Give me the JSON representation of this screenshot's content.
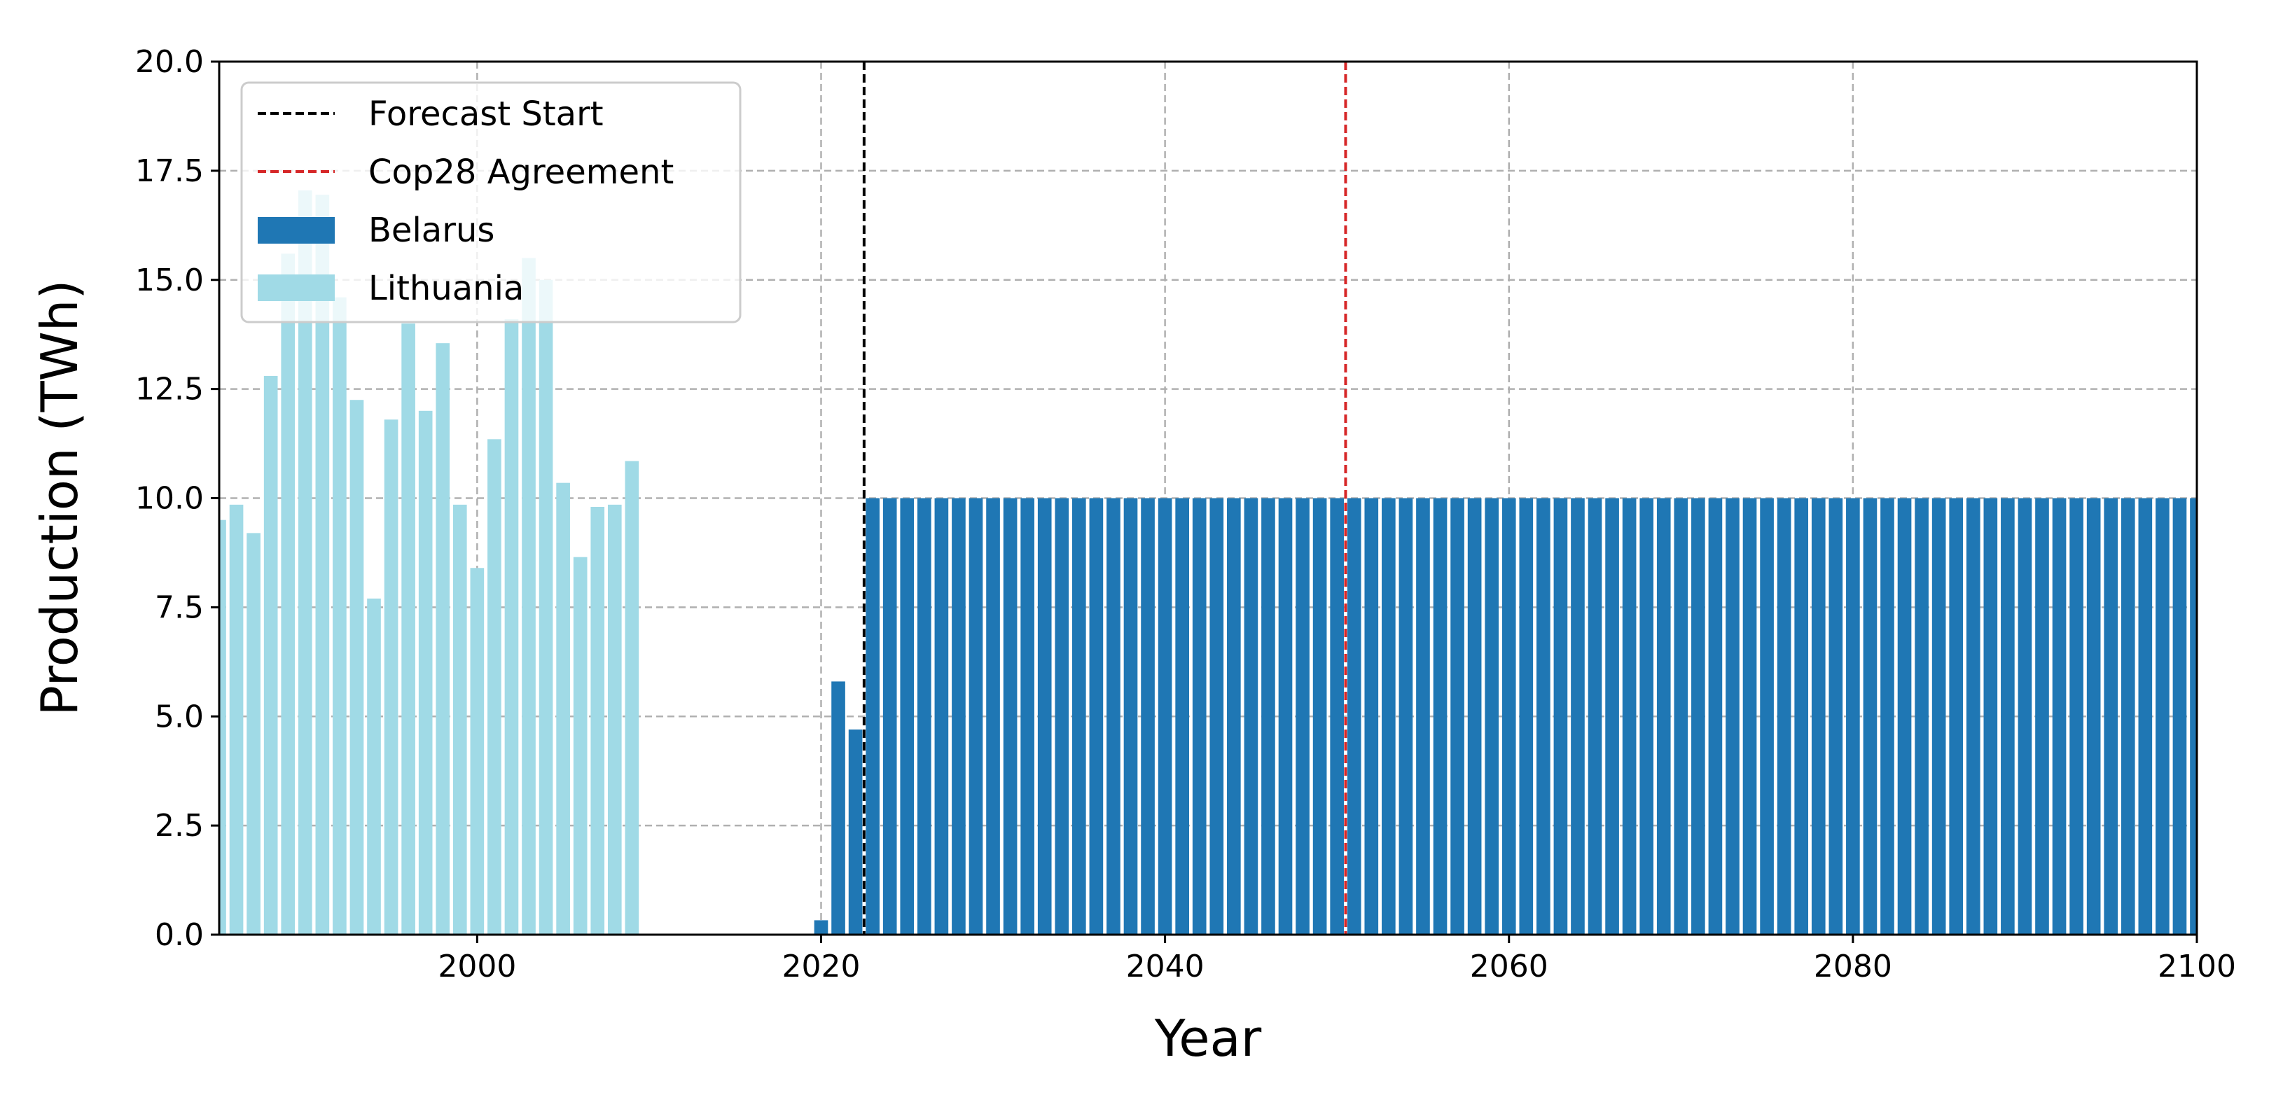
{
  "chart_data": {
    "type": "bar",
    "xlabel": "Year",
    "ylabel": "Production (TWh)",
    "xlim": [
      1985,
      2100
    ],
    "ylim": [
      0,
      20
    ],
    "x_ticks": [
      2000,
      2020,
      2040,
      2060,
      2080,
      2100
    ],
    "y_ticks": [
      "0.0",
      "2.5",
      "5.0",
      "7.5",
      "10.0",
      "12.5",
      "15.0",
      "17.5",
      "20.0"
    ],
    "grid": true,
    "legend_position": "top-left",
    "series": [
      {
        "name": "Belarus",
        "color": "#1f77b4",
        "points": [
          [
            2020,
            0.33
          ],
          [
            2021,
            5.8
          ],
          [
            2022,
            4.7
          ],
          [
            2023,
            10.0
          ],
          [
            2024,
            10.0
          ],
          [
            2025,
            10.0
          ],
          [
            2026,
            10.0
          ],
          [
            2027,
            10.0
          ],
          [
            2028,
            10.0
          ],
          [
            2029,
            10.0
          ],
          [
            2030,
            10.0
          ],
          [
            2031,
            10.0
          ],
          [
            2032,
            10.0
          ],
          [
            2033,
            10.0
          ],
          [
            2034,
            10.0
          ],
          [
            2035,
            10.0
          ],
          [
            2036,
            10.0
          ],
          [
            2037,
            10.0
          ],
          [
            2038,
            10.0
          ],
          [
            2039,
            10.0
          ],
          [
            2040,
            10.0
          ],
          [
            2041,
            10.0
          ],
          [
            2042,
            10.0
          ],
          [
            2043,
            10.0
          ],
          [
            2044,
            10.0
          ],
          [
            2045,
            10.0
          ],
          [
            2046,
            10.0
          ],
          [
            2047,
            10.0
          ],
          [
            2048,
            10.0
          ],
          [
            2049,
            10.0
          ],
          [
            2050,
            10.0
          ],
          [
            2051,
            10.0
          ],
          [
            2052,
            10.0
          ],
          [
            2053,
            10.0
          ],
          [
            2054,
            10.0
          ],
          [
            2055,
            10.0
          ],
          [
            2056,
            10.0
          ],
          [
            2057,
            10.0
          ],
          [
            2058,
            10.0
          ],
          [
            2059,
            10.0
          ],
          [
            2060,
            10.0
          ],
          [
            2061,
            10.0
          ],
          [
            2062,
            10.0
          ],
          [
            2063,
            10.0
          ],
          [
            2064,
            10.0
          ],
          [
            2065,
            10.0
          ],
          [
            2066,
            10.0
          ],
          [
            2067,
            10.0
          ],
          [
            2068,
            10.0
          ],
          [
            2069,
            10.0
          ],
          [
            2070,
            10.0
          ],
          [
            2071,
            10.0
          ],
          [
            2072,
            10.0
          ],
          [
            2073,
            10.0
          ],
          [
            2074,
            10.0
          ],
          [
            2075,
            10.0
          ],
          [
            2076,
            10.0
          ],
          [
            2077,
            10.0
          ],
          [
            2078,
            10.0
          ],
          [
            2079,
            10.0
          ],
          [
            2080,
            10.0
          ],
          [
            2081,
            10.0
          ],
          [
            2082,
            10.0
          ],
          [
            2083,
            10.0
          ],
          [
            2084,
            10.0
          ],
          [
            2085,
            10.0
          ],
          [
            2086,
            10.0
          ],
          [
            2087,
            10.0
          ],
          [
            2088,
            10.0
          ],
          [
            2089,
            10.0
          ],
          [
            2090,
            10.0
          ],
          [
            2091,
            10.0
          ],
          [
            2092,
            10.0
          ],
          [
            2093,
            10.0
          ],
          [
            2094,
            10.0
          ],
          [
            2095,
            10.0
          ],
          [
            2096,
            10.0
          ],
          [
            2097,
            10.0
          ],
          [
            2098,
            10.0
          ],
          [
            2099,
            10.0
          ],
          [
            2100,
            10.0
          ]
        ]
      },
      {
        "name": "Lithuania",
        "color": "#a0dae6",
        "points": [
          [
            1985,
            9.5
          ],
          [
            1986,
            9.85
          ],
          [
            1987,
            9.2
          ],
          [
            1988,
            12.8
          ],
          [
            1989,
            15.6
          ],
          [
            1990,
            17.05
          ],
          [
            1991,
            16.95
          ],
          [
            1992,
            14.6
          ],
          [
            1993,
            12.25
          ],
          [
            1994,
            7.7
          ],
          [
            1995,
            11.8
          ],
          [
            1996,
            14.0
          ],
          [
            1997,
            12.0
          ],
          [
            1998,
            13.55
          ],
          [
            1999,
            9.85
          ],
          [
            2000,
            8.4
          ],
          [
            2001,
            11.35
          ],
          [
            2002,
            14.1
          ],
          [
            2003,
            15.5
          ],
          [
            2004,
            15.0
          ],
          [
            2005,
            10.35
          ],
          [
            2006,
            8.65
          ],
          [
            2007,
            9.8
          ],
          [
            2008,
            9.85
          ],
          [
            2009,
            10.85
          ]
        ]
      }
    ],
    "reference_lines": [
      {
        "name": "Forecast Start",
        "x": 2022.5,
        "color": "#000000",
        "style": "dashed"
      },
      {
        "name": "Cop28 Agreement",
        "x": 2050.5,
        "color": "#d62728",
        "style": "dashed"
      }
    ]
  }
}
